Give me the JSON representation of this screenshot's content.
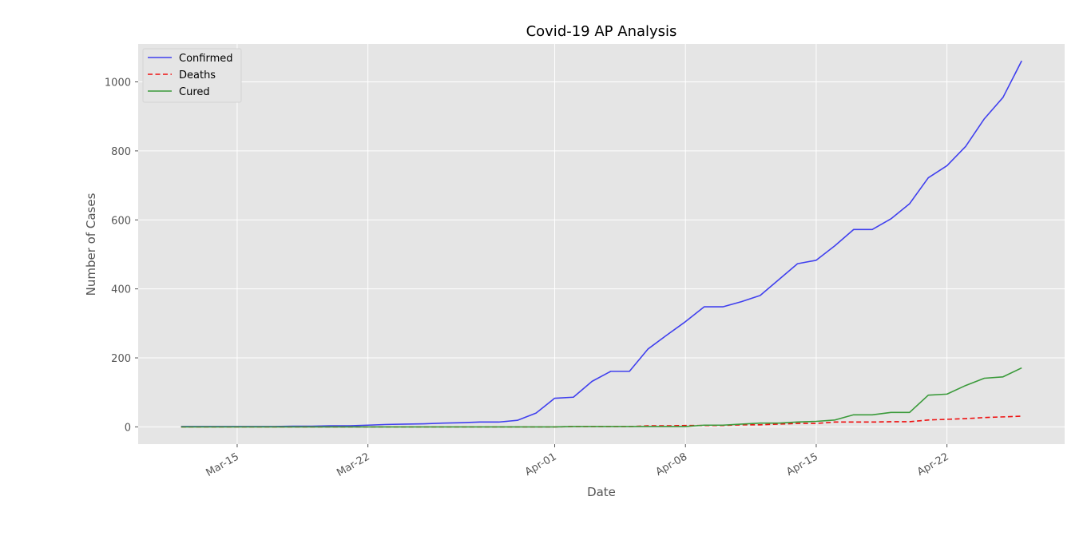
{
  "chart_data": {
    "type": "line",
    "title": "Covid-19 AP Analysis",
    "xlabel": "Date",
    "ylabel": "Number of Cases",
    "x_start": "2020-03-12",
    "x": [
      "2020-03-12",
      "2020-03-13",
      "2020-03-14",
      "2020-03-15",
      "2020-03-16",
      "2020-03-17",
      "2020-03-18",
      "2020-03-19",
      "2020-03-20",
      "2020-03-21",
      "2020-03-22",
      "2020-03-23",
      "2020-03-24",
      "2020-03-25",
      "2020-03-26",
      "2020-03-27",
      "2020-03-28",
      "2020-03-29",
      "2020-03-30",
      "2020-03-31",
      "2020-04-01",
      "2020-04-02",
      "2020-04-03",
      "2020-04-04",
      "2020-04-05",
      "2020-04-06",
      "2020-04-07",
      "2020-04-08",
      "2020-04-09",
      "2020-04-10",
      "2020-04-11",
      "2020-04-12",
      "2020-04-13",
      "2020-04-14",
      "2020-04-15",
      "2020-04-16",
      "2020-04-17",
      "2020-04-18",
      "2020-04-19",
      "2020-04-20",
      "2020-04-21",
      "2020-04-22",
      "2020-04-23",
      "2020-04-24",
      "2020-04-25",
      "2020-04-26"
    ],
    "x_tick_labels": [
      "Mar-15",
      "Mar-22",
      "Apr-01",
      "Apr-08",
      "Apr-15",
      "Apr-22"
    ],
    "x_tick_dates": [
      "2020-03-15",
      "2020-03-22",
      "2020-04-01",
      "2020-04-08",
      "2020-04-15",
      "2020-04-22"
    ],
    "y_ticks": [
      0,
      200,
      400,
      600,
      800,
      1000
    ],
    "ylim": [
      -50,
      1110
    ],
    "grid": true,
    "legend_position": "top-left",
    "series": [
      {
        "name": "Confirmed",
        "color": "#4040ee",
        "style": "solid",
        "values": [
          1,
          1,
          1,
          1,
          1,
          1,
          2,
          2,
          3,
          3,
          5,
          7,
          8,
          9,
          11,
          12,
          14,
          14,
          19,
          40,
          83,
          86,
          132,
          161,
          161,
          226,
          266,
          305,
          348,
          348,
          363,
          381,
          427,
          473,
          483,
          525,
          572,
          572,
          603,
          647,
          722,
          757,
          813,
          893,
          955,
          1061
        ]
      },
      {
        "name": "Deaths",
        "color": "#ee1111",
        "style": "dashed",
        "values": [
          0,
          0,
          0,
          0,
          0,
          0,
          0,
          0,
          0,
          0,
          0,
          0,
          0,
          0,
          0,
          0,
          0,
          0,
          0,
          0,
          0,
          1,
          1,
          1,
          1,
          3,
          3,
          4,
          4,
          4,
          6,
          6,
          8,
          10,
          10,
          14,
          14,
          14,
          15,
          15,
          20,
          22,
          24,
          27,
          29,
          31
        ]
      },
      {
        "name": "Cured",
        "color": "#3a9a3a",
        "style": "solid",
        "values": [
          0,
          0,
          0,
          0,
          0,
          0,
          0,
          0,
          0,
          0,
          0,
          0,
          0,
          0,
          0,
          0,
          0,
          0,
          0,
          0,
          0,
          1,
          1,
          1,
          1,
          1,
          1,
          1,
          5,
          5,
          8,
          11,
          11,
          14,
          16,
          20,
          35,
          35,
          42,
          42,
          92,
          95,
          120,
          141,
          145,
          171
        ]
      }
    ]
  }
}
